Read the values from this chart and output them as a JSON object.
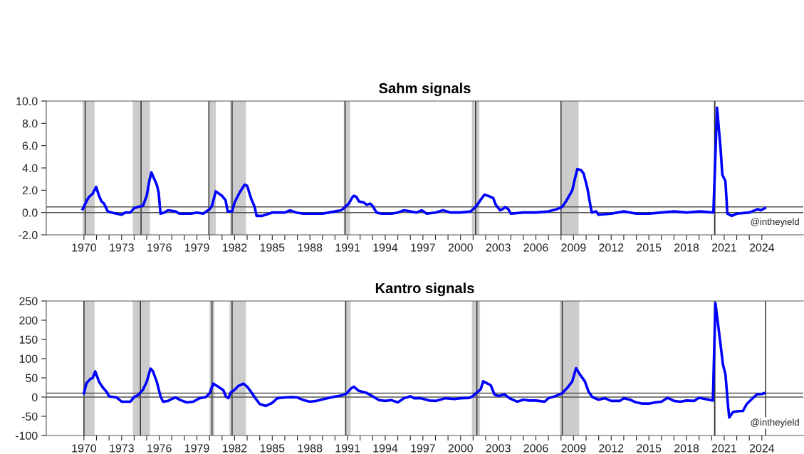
{
  "chart_data": [
    {
      "type": "line",
      "title": "Sahm signals",
      "series": [
        {
          "color": "#0000ff",
          "x": [
            1969.9,
            1970.2,
            1970.4,
            1970.7,
            1970.97,
            1971.2,
            1971.4,
            1971.6,
            1971.9,
            1972.2,
            1972.6,
            1973.0,
            1973.3,
            1973.7,
            1974.0,
            1974.3,
            1974.7,
            1975.0,
            1975.2,
            1975.37,
            1975.8,
            1975.95,
            1976.1,
            1976.4,
            1976.7,
            1977.3,
            1977.6,
            1978.5,
            1979.0,
            1979.5,
            1980.0,
            1980.2,
            1980.5,
            1981.0,
            1981.28,
            1981.45,
            1981.8,
            1982.0,
            1982.4,
            1982.8,
            1983.0,
            1983.3,
            1983.6,
            1983.75,
            1984.2,
            1985.0,
            1985.5,
            1986.0,
            1986.4,
            1986.9,
            1987.5,
            1989.0,
            1990.0,
            1990.5,
            1990.8,
            1991.1,
            1991.4,
            1991.5,
            1991.7,
            1991.9,
            1992.3,
            1992.5,
            1992.8,
            1993.0,
            1993.3,
            1993.7,
            1994.5,
            1995.0,
            1995.5,
            1996.0,
            1996.5,
            1996.9,
            1997.3,
            1998.0,
            1998.6,
            1999.2,
            2000.0,
            2000.8,
            2001.2,
            2001.4,
            2001.7,
            2001.9,
            2002.2,
            2002.6,
            2002.8,
            2003.15,
            2003.35,
            2003.57,
            2003.8,
            2004.0,
            2005.0,
            2006.0,
            2007.0,
            2007.67,
            2008.08,
            2008.4,
            2008.9,
            2009.1,
            2009.3,
            2009.6,
            2009.8,
            2010.1,
            2010.3,
            2010.45,
            2010.8,
            2011.0,
            2012.0,
            2013.0,
            2014.0,
            2015.0,
            2016.0,
            2017.0,
            2018.0,
            2019.05,
            2020.14,
            2020.43,
            2020.7,
            2020.85,
            2021.1,
            2021.25,
            2021.6,
            2022.0,
            2023.0,
            2023.67,
            2023.9,
            2024.25
          ],
          "values": [
            0.3,
            1.0,
            1.4,
            1.7,
            2.3,
            1.5,
            1.0,
            0.8,
            0.1,
            0.0,
            -0.1,
            -0.2,
            0.0,
            0.0,
            0.4,
            0.5,
            0.6,
            1.5,
            2.8,
            3.6,
            2.5,
            1.8,
            -0.1,
            0.0,
            0.2,
            0.1,
            -0.1,
            -0.1,
            0.0,
            -0.1,
            0.3,
            0.6,
            1.9,
            1.5,
            1.1,
            0.1,
            0.1,
            0.9,
            1.8,
            2.5,
            2.4,
            1.3,
            0.5,
            -0.3,
            -0.3,
            0.0,
            0.0,
            0.0,
            0.2,
            0.0,
            -0.1,
            -0.1,
            0.1,
            0.2,
            0.5,
            0.8,
            1.4,
            1.5,
            1.4,
            1.0,
            0.9,
            0.7,
            0.8,
            0.6,
            0.0,
            -0.1,
            -0.1,
            0.0,
            0.2,
            0.1,
            0.0,
            0.2,
            -0.1,
            0.0,
            0.2,
            0.0,
            0.0,
            0.1,
            0.5,
            0.8,
            1.3,
            1.6,
            1.5,
            1.3,
            0.7,
            0.2,
            0.3,
            0.5,
            0.3,
            -0.1,
            0.0,
            0.0,
            0.1,
            0.3,
            0.5,
            1.0,
            2.0,
            3.0,
            3.9,
            3.8,
            3.5,
            2.2,
            0.9,
            0.0,
            0.1,
            -0.2,
            -0.1,
            0.1,
            -0.1,
            -0.1,
            0.0,
            0.1,
            0.0,
            0.1,
            0.0,
            9.4,
            5.9,
            3.4,
            2.8,
            -0.1,
            -0.3,
            -0.1,
            0.0,
            0.3,
            0.2,
            0.4
          ]
        }
      ],
      "xlim": [
        1967,
        2027.3
      ],
      "xticks": [
        1970,
        {
          "value": 1971,
          "label": null
        },
        {
          "value": 1972,
          "label": null
        },
        1973,
        {
          "value": 1974,
          "label": null
        },
        {
          "value": 1975,
          "label": null
        },
        1976,
        {
          "value": 1977,
          "label": null
        },
        {
          "value": 1978,
          "label": null
        },
        1979,
        {
          "value": 1980,
          "label": null
        },
        {
          "value": 1981,
          "label": null
        },
        1982,
        {
          "value": 1983,
          "label": null
        },
        {
          "value": 1984,
          "label": null
        },
        1985,
        {
          "value": 1986,
          "label": null
        },
        {
          "value": 1987,
          "label": null
        },
        1988,
        {
          "value": 1989,
          "label": null
        },
        {
          "value": 1990,
          "label": null
        },
        1991,
        {
          "value": 1992,
          "label": null
        },
        {
          "value": 1993,
          "label": null
        },
        1994,
        {
          "value": 1995,
          "label": null
        },
        {
          "value": 1996,
          "label": null
        },
        1997,
        {
          "value": 1998,
          "label": null
        },
        {
          "value": 1999,
          "label": null
        },
        2000,
        {
          "value": 2001,
          "label": null
        },
        {
          "value": 2002,
          "label": null
        },
        2003,
        {
          "value": 2004,
          "label": null
        },
        {
          "value": 2005,
          "label": null
        },
        2006,
        {
          "value": 2007,
          "label": null
        },
        {
          "value": 2008,
          "label": null
        },
        2009,
        {
          "value": 2010,
          "label": null
        },
        {
          "value": 2011,
          "label": null
        },
        2012,
        {
          "value": 2013,
          "label": null
        },
        {
          "value": 2014,
          "label": null
        },
        2015,
        {
          "value": 2016,
          "label": null
        },
        {
          "value": 2017,
          "label": null
        },
        2018,
        {
          "value": 2019,
          "label": null
        },
        {
          "value": 2020,
          "label": null
        },
        2021,
        {
          "value": 2022,
          "label": null
        },
        {
          "value": 2023,
          "label": null
        },
        2024
      ],
      "ylim": [
        -2,
        10
      ],
      "yticks": [
        {
          "value": -2,
          "label": "-2.0"
        },
        {
          "value": 0,
          "label": "0.0"
        },
        {
          "value": 2,
          "label": "2.0"
        },
        {
          "value": 4,
          "label": "4.0"
        },
        {
          "value": 6,
          "label": "6.0"
        },
        {
          "value": 8,
          "label": "8.0"
        },
        {
          "value": 10,
          "label": "10.0"
        }
      ],
      "bands": [
        {
          "axis": "x",
          "from": 1969.9,
          "to": 1970.85,
          "color": "#cccccc"
        },
        {
          "axis": "x",
          "from": 1973.9,
          "to": 1975.25,
          "color": "#cccccc"
        },
        {
          "axis": "x",
          "from": 1979.95,
          "to": 1980.5,
          "color": "#cccccc"
        },
        {
          "axis": "x",
          "from": 1981.65,
          "to": 1982.9,
          "color": "#cccccc"
        },
        {
          "axis": "x",
          "from": 1990.7,
          "to": 1991.2,
          "color": "#cccccc"
        },
        {
          "axis": "x",
          "from": 2000.9,
          "to": 2001.5,
          "color": "#cccccc"
        },
        {
          "axis": "x",
          "from": 2008.0,
          "to": 2009.4,
          "color": "#cccccc"
        },
        {
          "axis": "x",
          "from": 2020.15,
          "to": 2020.3,
          "color": "#cccccc"
        }
      ],
      "ref_lines": [
        {
          "axis": "x",
          "value": 1970.1,
          "color": "#333333"
        },
        {
          "axis": "x",
          "value": 1974.55,
          "color": "#333333"
        },
        {
          "axis": "x",
          "value": 1979.95,
          "color": "#333333"
        },
        {
          "axis": "x",
          "value": 1981.8,
          "color": "#333333"
        },
        {
          "axis": "x",
          "value": 1990.8,
          "color": "#333333"
        },
        {
          "axis": "x",
          "value": 2001.2,
          "color": "#333333"
        },
        {
          "axis": "x",
          "value": 2008.0,
          "color": "#333333"
        },
        {
          "axis": "x",
          "value": 2020.25,
          "color": "#333333"
        },
        {
          "axis": "y",
          "value": 0,
          "color": "#555555"
        },
        {
          "axis": "y",
          "value": 0.5,
          "color": "#555555"
        }
      ],
      "annotations": [
        "@intheyield"
      ],
      "grid": false,
      "line_style": "solid",
      "marker": "none"
    },
    {
      "type": "line",
      "title": "Kantro signals",
      "series": [
        {
          "color": "#0000ff",
          "x": [
            1970.0,
            1970.2,
            1970.5,
            1970.7,
            1970.9,
            1971.2,
            1971.5,
            1971.8,
            1972.0,
            1972.6,
            1973.0,
            1973.7,
            1974.0,
            1974.3,
            1974.7,
            1975.0,
            1975.3,
            1975.5,
            1975.8,
            1976.1,
            1976.3,
            1976.7,
            1977.0,
            1977.3,
            1977.7,
            1978.2,
            1978.7,
            1979.2,
            1979.7,
            1980.0,
            1980.3,
            1980.7,
            1981.1,
            1981.3,
            1981.5,
            1981.7,
            1982.0,
            1982.3,
            1982.7,
            1983.0,
            1983.3,
            1983.7,
            1984.0,
            1984.5,
            1985.0,
            1985.4,
            1986.0,
            1986.5,
            1987.0,
            1987.5,
            1988.0,
            1988.5,
            1989.0,
            1989.8,
            1990.5,
            1990.9,
            1991.3,
            1991.5,
            1991.9,
            1992.5,
            1993.0,
            1993.5,
            1994.0,
            1994.5,
            1995.0,
            1995.5,
            1996.0,
            1996.3,
            1996.8,
            1997.5,
            1998.0,
            1998.8,
            1999.5,
            2000.0,
            2000.7,
            2001.0,
            2001.3,
            2001.6,
            2001.8,
            2002.1,
            2002.4,
            2002.7,
            2003.0,
            2003.5,
            2003.9,
            2004.5,
            2005.0,
            2005.5,
            2006.0,
            2006.7,
            2007.0,
            2007.6,
            2008.1,
            2008.5,
            2008.9,
            2009.2,
            2009.5,
            2009.9,
            2010.2,
            2010.5,
            2011.0,
            2011.5,
            2012.0,
            2012.7,
            2013.0,
            2013.5,
            2014.0,
            2014.5,
            2015.0,
            2015.5,
            2016.0,
            2016.5,
            2017.0,
            2017.5,
            2018.0,
            2018.6,
            2019.0,
            2019.5,
            2020.1,
            2020.3,
            2020.6,
            2020.9,
            2021.1,
            2021.3,
            2021.4,
            2021.7,
            2022.0,
            2022.5,
            2022.8,
            2023.3,
            2023.6,
            2024.0,
            2024.2
          ],
          "values": [
            10,
            36,
            47,
            50,
            67,
            40,
            25,
            14,
            2,
            -1,
            -12,
            -12,
            0,
            5,
            19,
            40,
            74,
            67,
            40,
            2,
            -12,
            -10,
            -5,
            -1,
            -8,
            -14,
            -12,
            -3,
            0,
            9,
            35,
            27,
            18,
            2,
            -3,
            12,
            19,
            29,
            35,
            27,
            14,
            -5,
            -18,
            -23,
            -15,
            -3,
            -1,
            0,
            -1,
            -8,
            -12,
            -10,
            -6,
            0,
            4,
            9,
            23,
            27,
            16,
            11,
            2,
            -8,
            -10,
            -8,
            -14,
            -3,
            2,
            -3,
            -3,
            -9,
            -10,
            -3,
            -5,
            -3,
            -2,
            3,
            12,
            20,
            41,
            36,
            31,
            7,
            3,
            7,
            -3,
            -12,
            -7,
            -9,
            -9,
            -12,
            -3,
            3,
            10,
            24,
            41,
            75,
            59,
            41,
            14,
            0,
            -7,
            -3,
            -10,
            -10,
            -3,
            -7,
            -14,
            -17,
            -17,
            -14,
            -12,
            -2,
            -10,
            -12,
            -9,
            -10,
            -2,
            -5,
            -9,
            245,
            166,
            85,
            59,
            -20,
            -53,
            -39,
            -37,
            -36,
            -18,
            -2,
            7,
            8,
            10
          ]
        }
      ],
      "xlim": [
        1967,
        2027.3
      ],
      "xticks": [
        1970,
        {
          "value": 1971,
          "label": null
        },
        {
          "value": 1972,
          "label": null
        },
        1973,
        {
          "value": 1974,
          "label": null
        },
        {
          "value": 1975,
          "label": null
        },
        1976,
        {
          "value": 1977,
          "label": null
        },
        {
          "value": 1978,
          "label": null
        },
        1979,
        {
          "value": 1980,
          "label": null
        },
        {
          "value": 1981,
          "label": null
        },
        1982,
        {
          "value": 1983,
          "label": null
        },
        {
          "value": 1984,
          "label": null
        },
        1985,
        {
          "value": 1986,
          "label": null
        },
        {
          "value": 1987,
          "label": null
        },
        1988,
        {
          "value": 1989,
          "label": null
        },
        {
          "value": 1990,
          "label": null
        },
        1991,
        {
          "value": 1992,
          "label": null
        },
        {
          "value": 1993,
          "label": null
        },
        1994,
        {
          "value": 1995,
          "label": null
        },
        {
          "value": 1996,
          "label": null
        },
        1997,
        {
          "value": 1998,
          "label": null
        },
        {
          "value": 1999,
          "label": null
        },
        2000,
        {
          "value": 2001,
          "label": null
        },
        {
          "value": 2002,
          "label": null
        },
        2003,
        {
          "value": 2004,
          "label": null
        },
        {
          "value": 2005,
          "label": null
        },
        2006,
        {
          "value": 2007,
          "label": null
        },
        {
          "value": 2008,
          "label": null
        },
        2009,
        {
          "value": 2010,
          "label": null
        },
        {
          "value": 2011,
          "label": null
        },
        2012,
        {
          "value": 2013,
          "label": null
        },
        {
          "value": 2014,
          "label": null
        },
        2015,
        {
          "value": 2016,
          "label": null
        },
        {
          "value": 2017,
          "label": null
        },
        2018,
        {
          "value": 2019,
          "label": null
        },
        {
          "value": 2020,
          "label": null
        },
        2021,
        {
          "value": 2022,
          "label": null
        },
        {
          "value": 2023,
          "label": null
        },
        2024
      ],
      "ylim": [
        -100,
        250
      ],
      "yticks": [
        -100,
        -50,
        0,
        50,
        100,
        150,
        200,
        250
      ],
      "bands": [
        {
          "axis": "x",
          "from": 1970.0,
          "to": 1970.85,
          "color": "#cccccc"
        },
        {
          "axis": "x",
          "from": 1973.9,
          "to": 1975.25,
          "color": "#cccccc"
        },
        {
          "axis": "x",
          "from": 1980.0,
          "to": 1980.4,
          "color": "#cccccc"
        },
        {
          "axis": "x",
          "from": 1981.6,
          "to": 1982.9,
          "color": "#cccccc"
        },
        {
          "axis": "x",
          "from": 1990.8,
          "to": 1991.25,
          "color": "#cccccc"
        },
        {
          "axis": "x",
          "from": 2000.9,
          "to": 2001.55,
          "color": "#cccccc"
        },
        {
          "axis": "x",
          "from": 2007.9,
          "to": 2009.45,
          "color": "#cccccc"
        },
        {
          "axis": "x",
          "from": 2020.15,
          "to": 2020.3,
          "color": "#cccccc"
        }
      ],
      "ref_lines": [
        {
          "axis": "x",
          "value": 1970.0,
          "color": "#333333"
        },
        {
          "axis": "x",
          "value": 1974.5,
          "color": "#333333"
        },
        {
          "axis": "x",
          "value": 1980.2,
          "color": "#333333"
        },
        {
          "axis": "x",
          "value": 1981.8,
          "color": "#333333"
        },
        {
          "axis": "x",
          "value": 1990.85,
          "color": "#333333"
        },
        {
          "axis": "x",
          "value": 2001.3,
          "color": "#333333"
        },
        {
          "axis": "x",
          "value": 2008.1,
          "color": "#333333"
        },
        {
          "axis": "x",
          "value": 2020.25,
          "color": "#333333"
        },
        {
          "axis": "x",
          "value": 2024.3,
          "color": "#333333"
        },
        {
          "axis": "y",
          "value": 0,
          "color": "#555555"
        },
        {
          "axis": "y",
          "value": 10,
          "color": "#555555"
        }
      ],
      "annotations": [
        "@intheyield"
      ],
      "grid": false,
      "line_style": "solid",
      "marker": "none"
    }
  ]
}
